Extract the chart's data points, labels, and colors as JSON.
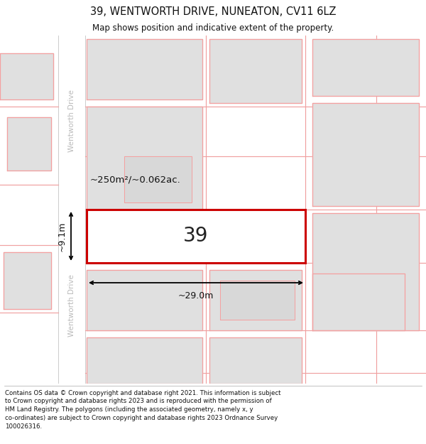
{
  "title": "39, WENTWORTH DRIVE, NUNEATON, CV11 6LZ",
  "subtitle": "Map shows position and indicative extent of the property.",
  "footer": "Contains OS data © Crown copyright and database right 2021. This information is subject\nto Crown copyright and database rights 2023 and is reproduced with the permission of\nHM Land Registry. The polygons (including the associated geometry, namely x, y\nco-ordinates) are subject to Crown copyright and database rights 2023 Ordnance Survey\n100026316.",
  "background_color": "#ffffff",
  "map_bg": "#f2f2f2",
  "road_fill": "#ffffff",
  "building_fill": "#e0e0e0",
  "building_ec": "#f5a0a0",
  "highlight_fill": "#ffffff",
  "highlight_ec": "#cc0000",
  "title_fontsize": 10.5,
  "subtitle_fontsize": 8.5,
  "footer_fontsize": 6.2,
  "label_39": "39",
  "area_label": "~250m²/~0.062ac.",
  "width_label": "~29.0m",
  "height_label": "~9.1m",
  "road_label": "Wentworth Drive"
}
